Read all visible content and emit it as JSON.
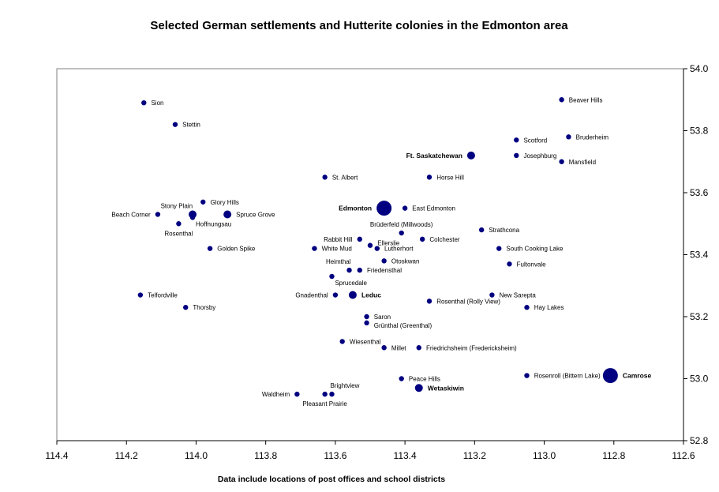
{
  "chart_data": {
    "type": "scatter",
    "title": "Selected German settlements and Hutterite colonies in the Edmonton area",
    "xlabel": "Data include locations of post offices and school districts",
    "ylabel": "",
    "xlim": [
      114.4,
      112.6
    ],
    "ylim": [
      52.8,
      54.0
    ],
    "x_reversed": true,
    "y_axis_side": "right",
    "xticks": [
      "114.4",
      "114.2",
      "114.0",
      "113.8",
      "113.6",
      "113.4",
      "113.2",
      "113.0",
      "112.8",
      "112.6"
    ],
    "yticks": [
      "52.8",
      "53.0",
      "53.2",
      "53.4",
      "53.6",
      "53.8",
      "54.0"
    ],
    "grid": false,
    "color": "#000080",
    "points": [
      {
        "name": "Sion",
        "x": 114.15,
        "y": 53.89,
        "size": "small",
        "label": "right"
      },
      {
        "name": "Stettin",
        "x": 114.06,
        "y": 53.82,
        "size": "small",
        "label": "right"
      },
      {
        "name": "Beaver Hills",
        "x": 112.95,
        "y": 53.9,
        "size": "small",
        "label": "right"
      },
      {
        "name": "Bruderheim",
        "x": 112.93,
        "y": 53.78,
        "size": "small",
        "label": "right"
      },
      {
        "name": "Scotford",
        "x": 113.08,
        "y": 53.77,
        "size": "small",
        "label": "right"
      },
      {
        "name": "Ft. Saskatchewan",
        "x": 113.21,
        "y": 53.72,
        "size": "medium",
        "label": "left",
        "bold": true
      },
      {
        "name": "Josephburg",
        "x": 113.08,
        "y": 53.72,
        "size": "small",
        "label": "right"
      },
      {
        "name": "Mansfield",
        "x": 112.95,
        "y": 53.7,
        "size": "small",
        "label": "right"
      },
      {
        "name": "St. Albert",
        "x": 113.63,
        "y": 53.65,
        "size": "small",
        "label": "right"
      },
      {
        "name": "Horse Hill",
        "x": 113.33,
        "y": 53.65,
        "size": "small",
        "label": "right"
      },
      {
        "name": "Edmonton",
        "x": 113.46,
        "y": 53.55,
        "size": "large",
        "label": "left",
        "bold": true
      },
      {
        "name": "East Edmonton",
        "x": 113.4,
        "y": 53.55,
        "size": "small",
        "label": "right"
      },
      {
        "name": "Glory Hills",
        "x": 113.98,
        "y": 53.57,
        "size": "small",
        "label": "right"
      },
      {
        "name": "Stony Plain",
        "x": 114.01,
        "y": 53.53,
        "size": "medium",
        "label": "above"
      },
      {
        "name": "Hoffnungsau",
        "x": 114.01,
        "y": 53.52,
        "size": "small",
        "label": "below-right"
      },
      {
        "name": "Beach Corner",
        "x": 114.11,
        "y": 53.53,
        "size": "small",
        "label": "left"
      },
      {
        "name": "Spruce Grove",
        "x": 113.91,
        "y": 53.53,
        "size": "medium",
        "label": "right"
      },
      {
        "name": "Rosenthal",
        "x": 114.05,
        "y": 53.5,
        "size": "small",
        "label": "below"
      },
      {
        "name": "Golden Spike",
        "x": 113.96,
        "y": 53.42,
        "size": "small",
        "label": "right"
      },
      {
        "name": "Brüderfeld (Millwoods)",
        "x": 113.41,
        "y": 53.47,
        "size": "small",
        "label": "above"
      },
      {
        "name": "Strathcona",
        "x": 113.18,
        "y": 53.48,
        "size": "small",
        "label": "right"
      },
      {
        "name": "Rabbit Hill",
        "x": 113.53,
        "y": 53.45,
        "size": "small",
        "label": "left"
      },
      {
        "name": "Colchester",
        "x": 113.35,
        "y": 53.45,
        "size": "small",
        "label": "right"
      },
      {
        "name": "Ellerslie",
        "x": 113.5,
        "y": 53.43,
        "size": "small",
        "label": "right"
      },
      {
        "name": "White Mud",
        "x": 113.66,
        "y": 53.42,
        "size": "small",
        "label": "right"
      },
      {
        "name": "Lutherhort",
        "x": 113.48,
        "y": 53.42,
        "size": "small",
        "label": "right"
      },
      {
        "name": "South Cooking Lake",
        "x": 113.13,
        "y": 53.42,
        "size": "small",
        "label": "right"
      },
      {
        "name": "Otoskwan",
        "x": 113.46,
        "y": 53.38,
        "size": "small",
        "label": "right"
      },
      {
        "name": "Fultonvale",
        "x": 113.1,
        "y": 53.37,
        "size": "small",
        "label": "right"
      },
      {
        "name": "Heimthal",
        "x": 113.56,
        "y": 53.35,
        "size": "small",
        "label": "above-left"
      },
      {
        "name": "Friedensthal",
        "x": 113.53,
        "y": 53.35,
        "size": "small",
        "label": "right"
      },
      {
        "name": "Sprucedale",
        "x": 113.61,
        "y": 53.33,
        "size": "small",
        "label": "below-right"
      },
      {
        "name": "Telfordville",
        "x": 114.16,
        "y": 53.27,
        "size": "small",
        "label": "right"
      },
      {
        "name": "Thorsby",
        "x": 114.03,
        "y": 53.23,
        "size": "small",
        "label": "right"
      },
      {
        "name": "Gnadenthal",
        "x": 113.6,
        "y": 53.27,
        "size": "small",
        "label": "left"
      },
      {
        "name": "Leduc",
        "x": 113.55,
        "y": 53.27,
        "size": "medium",
        "label": "right",
        "bold": true
      },
      {
        "name": "Rosenthal (Rolly View)",
        "x": 113.33,
        "y": 53.25,
        "size": "small",
        "label": "right"
      },
      {
        "name": "New Sarepta",
        "x": 113.15,
        "y": 53.27,
        "size": "small",
        "label": "right"
      },
      {
        "name": "Hay Lakes",
        "x": 113.05,
        "y": 53.23,
        "size": "small",
        "label": "right"
      },
      {
        "name": "Saron",
        "x": 113.51,
        "y": 53.2,
        "size": "small",
        "label": "right"
      },
      {
        "name": "Grünthal (Greenthal)",
        "x": 113.51,
        "y": 53.18,
        "size": "small",
        "label": "right"
      },
      {
        "name": "Wiesenthal",
        "x": 113.58,
        "y": 53.12,
        "size": "small",
        "label": "right"
      },
      {
        "name": "Millet",
        "x": 113.46,
        "y": 53.1,
        "size": "small",
        "label": "right"
      },
      {
        "name": "Friedrichsheim (Fredericksheim)",
        "x": 113.36,
        "y": 53.1,
        "size": "small",
        "label": "right"
      },
      {
        "name": "Rosenroll (Bittern Lake)",
        "x": 113.05,
        "y": 53.01,
        "size": "small",
        "label": "right"
      },
      {
        "name": "Camrose",
        "x": 112.81,
        "y": 53.01,
        "size": "large",
        "label": "right",
        "bold": true
      },
      {
        "name": "Peace Hills",
        "x": 113.41,
        "y": 53.0,
        "size": "small",
        "label": "right"
      },
      {
        "name": "Wetaskiwin",
        "x": 113.36,
        "y": 52.97,
        "size": "medium",
        "label": "right",
        "bold": true
      },
      {
        "name": "Waldheim",
        "x": 113.71,
        "y": 52.95,
        "size": "small",
        "label": "left"
      },
      {
        "name": "Pleasant Prairie",
        "x": 113.63,
        "y": 52.95,
        "size": "small",
        "label": "below"
      },
      {
        "name": "Brightview",
        "x": 113.61,
        "y": 52.95,
        "size": "small",
        "label": "above-right"
      }
    ]
  }
}
